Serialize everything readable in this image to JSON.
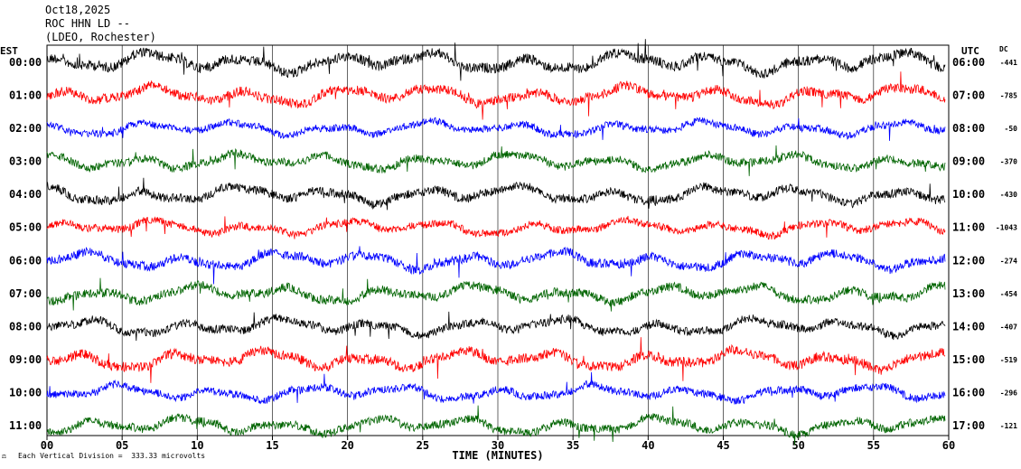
{
  "header": {
    "date": "Oct18,2025",
    "station": "ROC HHN LD --",
    "network": "(LDEO, Rochester)"
  },
  "footer": {
    "scale_note": "Each Vertical Division =  333.33 microvolts"
  },
  "chart_data": {
    "type": "line",
    "title": "",
    "xlabel": "TIME (MINUTES)",
    "ylabel": "",
    "xlim": [
      0,
      60
    ],
    "x_ticks": [
      "00",
      "05",
      "10",
      "15",
      "20",
      "25",
      "30",
      "35",
      "40",
      "45",
      "50",
      "55",
      "60"
    ],
    "left_axis_title": "EST",
    "right_axis_title": "UTC",
    "dc_title": "DC",
    "series_colors": [
      "#000000",
      "#ff0000",
      "#0000ff",
      "#006400"
    ],
    "traces": [
      {
        "est": "00:00",
        "utc": "06:00",
        "dc": "-441",
        "color": "#000000"
      },
      {
        "est": "01:00",
        "utc": "07:00",
        "dc": "-785",
        "color": "#ff0000"
      },
      {
        "est": "02:00",
        "utc": "08:00",
        "dc": "-50",
        "color": "#0000ff"
      },
      {
        "est": "03:00",
        "utc": "09:00",
        "dc": "-370",
        "color": "#006400"
      },
      {
        "est": "04:00",
        "utc": "10:00",
        "dc": "-430",
        "color": "#000000"
      },
      {
        "est": "05:00",
        "utc": "11:00",
        "dc": "-1043",
        "color": "#ff0000"
      },
      {
        "est": "06:00",
        "utc": "12:00",
        "dc": "-274",
        "color": "#0000ff"
      },
      {
        "est": "07:00",
        "utc": "13:00",
        "dc": "-454",
        "color": "#006400"
      },
      {
        "est": "08:00",
        "utc": "14:00",
        "dc": "-407",
        "color": "#000000"
      },
      {
        "est": "09:00",
        "utc": "15:00",
        "dc": "-519",
        "color": "#ff0000"
      },
      {
        "est": "10:00",
        "utc": "16:00",
        "dc": "-296",
        "color": "#0000ff"
      },
      {
        "est": "11:00",
        "utc": "17:00",
        "dc": "-121",
        "color": "#006400"
      }
    ]
  }
}
